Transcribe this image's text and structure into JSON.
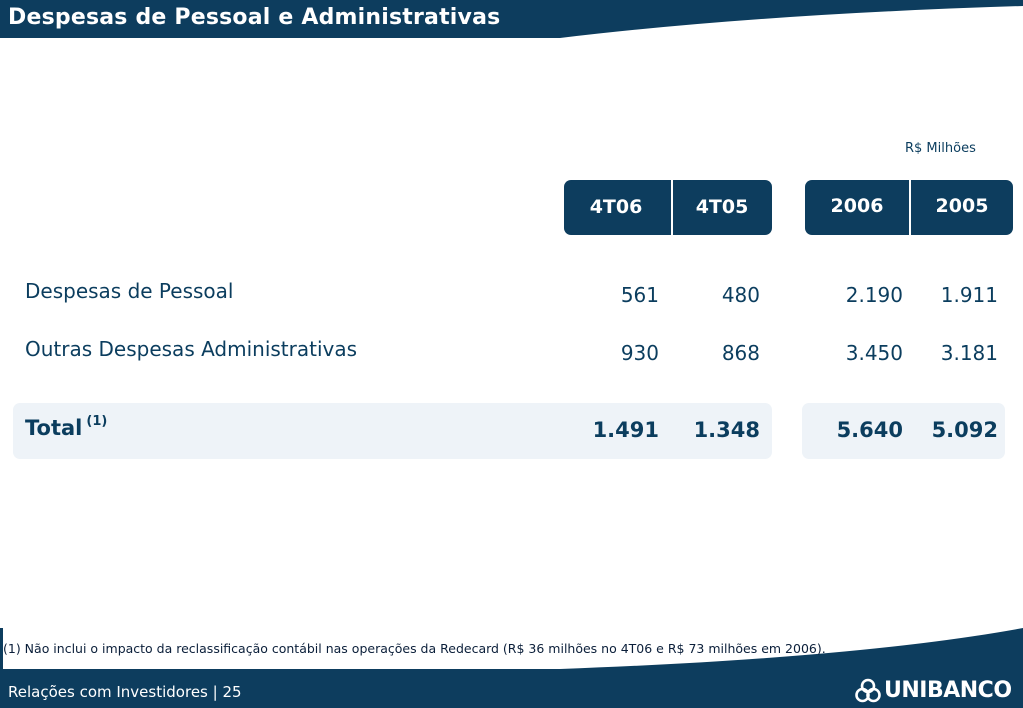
{
  "title": "Despesas de Pessoal e Administrativas",
  "unit_label": "R$ Milhões",
  "columns": {
    "quarter": [
      "4T06",
      "4T05"
    ],
    "year": [
      "2006",
      "2005"
    ]
  },
  "rows": [
    {
      "label": "Despesas de Pessoal",
      "values": [
        "561",
        "480",
        "2.190",
        "1.911"
      ]
    },
    {
      "label": "Outras Despesas Administrativas",
      "values": [
        "930",
        "868",
        "3.450",
        "3.181"
      ]
    }
  ],
  "total": {
    "label": "Total",
    "note_mark": "(1)",
    "values": [
      "1.491",
      "1.348",
      "5.640",
      "5.092"
    ]
  },
  "footnote": "(1) Não inclui o impacto da reclassificação contábil nas operações da Redecard (R$ 36 milhões no 4T06 e R$ 73 milhões em 2006).",
  "footer": {
    "text": "Relações com Investidores | 25",
    "logo_text": "UNIBANCO"
  },
  "colors": {
    "primary": "#0d3d5e",
    "total_background": "#eef3f8"
  }
}
